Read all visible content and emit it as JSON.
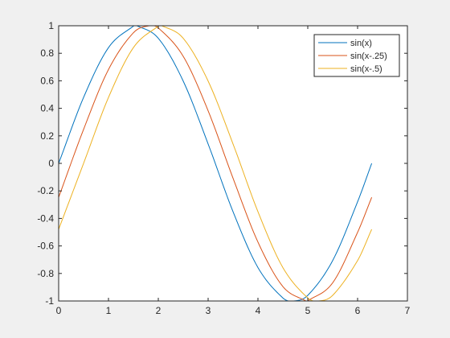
{
  "chart_data": {
    "type": "line",
    "title": "",
    "xlabel": "",
    "ylabel": "",
    "xlim": [
      0,
      7
    ],
    "ylim": [
      -1,
      1
    ],
    "xticks": [
      0,
      1,
      2,
      3,
      4,
      5,
      6,
      7
    ],
    "xtick_labels": [
      "0",
      "1",
      "2",
      "3",
      "4",
      "5",
      "6",
      "7"
    ],
    "yticks": [
      -1,
      -0.8,
      -0.6,
      -0.4,
      -0.2,
      0,
      0.2,
      0.4,
      0.6,
      0.8,
      1
    ],
    "ytick_labels": [
      "-1",
      "-0.8",
      "-0.6",
      "-0.4",
      "-0.2",
      "0",
      "0.2",
      "0.4",
      "0.6",
      "0.8",
      "1"
    ],
    "grid": false,
    "legend_position": "top-right",
    "series": [
      {
        "name": "sin(x)",
        "color": "#0072BD",
        "x": [
          0,
          0.5,
          1,
          1.5,
          1.5708,
          2,
          2.5,
          3,
          3.5,
          4,
          4.5,
          4.7124,
          5,
          5.5,
          6,
          6.2832
        ],
        "values": [
          0,
          0.479,
          0.841,
          0.997,
          1.0,
          0.909,
          0.598,
          0.141,
          -0.351,
          -0.757,
          -0.978,
          -1.0,
          -0.959,
          -0.706,
          -0.279,
          0
        ]
      },
      {
        "name": "sin(x-.25)",
        "color": "#D95319",
        "x": [
          0,
          0.5,
          1,
          1.5,
          1.8208,
          2,
          2.5,
          3,
          3.5,
          4,
          4.5,
          4.9624,
          5,
          5.5,
          6,
          6.2832
        ],
        "values": [
          -0.247,
          0.247,
          0.682,
          0.949,
          1.0,
          0.984,
          0.778,
          0.382,
          -0.108,
          -0.572,
          -0.895,
          -1.0,
          -0.999,
          -0.868,
          -0.501,
          -0.247
        ]
      },
      {
        "name": "sin(x-.5)",
        "color": "#EDB120",
        "x": [
          0,
          0.5,
          1,
          1.5,
          2,
          2.0708,
          2.5,
          3,
          3.5,
          4,
          4.5,
          5,
          5.2124,
          5.5,
          6,
          6.2832
        ],
        "values": [
          -0.479,
          0,
          0.479,
          0.841,
          0.997,
          1.0,
          0.909,
          0.598,
          0.141,
          -0.351,
          -0.757,
          -0.978,
          -1.0,
          -0.959,
          -0.706,
          -0.479
        ]
      }
    ]
  }
}
